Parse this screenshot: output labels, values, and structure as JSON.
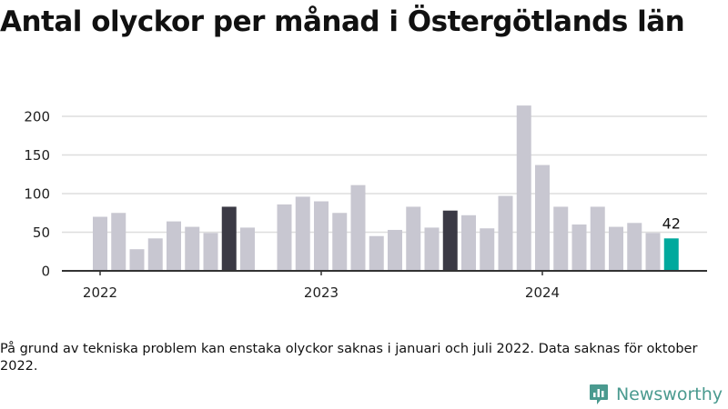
{
  "title": "Antal olyckor per månad i Östergötlands län",
  "footnote": "På grund av tekniska problem kan enstaka olyckor saknas i januari och juli 2022. Data saknas för oktober 2022.",
  "brand": {
    "name": "Newsworthy",
    "icon": "newsworthy-logo-icon",
    "color": "#4a9a8f"
  },
  "colors": {
    "bar": "#c8c7d1",
    "highlight": "#3b3a45",
    "latest": "#00a99d",
    "grid": "#dddddd",
    "axis": "#333333"
  },
  "chart_data": {
    "type": "bar",
    "title": "Antal olyckor per månad i Östergötlands län",
    "xlabel": "",
    "ylabel": "",
    "ylim": [
      0,
      220
    ],
    "yticks": [
      0,
      50,
      100,
      150,
      200
    ],
    "x_tick_labels": [
      {
        "label": "2022",
        "month": "2022-01"
      },
      {
        "label": "2023",
        "month": "2023-01"
      },
      {
        "label": "2024",
        "month": "2024-01"
      }
    ],
    "grid": true,
    "categories": [
      "2022-01",
      "2022-02",
      "2022-03",
      "2022-04",
      "2022-05",
      "2022-06",
      "2022-07",
      "2022-08",
      "2022-09",
      "2022-10",
      "2022-11",
      "2022-12",
      "2023-01",
      "2023-02",
      "2023-03",
      "2023-04",
      "2023-05",
      "2023-06",
      "2023-07",
      "2023-08",
      "2023-09",
      "2023-10",
      "2023-11",
      "2023-12",
      "2024-01",
      "2024-02",
      "2024-03",
      "2024-04",
      "2024-05",
      "2024-06",
      "2024-07",
      "2024-08"
    ],
    "values": [
      70,
      75,
      28,
      42,
      64,
      57,
      49,
      83,
      56,
      null,
      86,
      96,
      90,
      75,
      111,
      45,
      53,
      83,
      56,
      78,
      72,
      55,
      97,
      214,
      137,
      83,
      60,
      83,
      57,
      62,
      49,
      42
    ],
    "highlight_months": [
      "2022-08",
      "2023-08"
    ],
    "latest_month": "2024-08",
    "annotations": [
      {
        "month": "2024-08",
        "text": "42"
      }
    ]
  }
}
